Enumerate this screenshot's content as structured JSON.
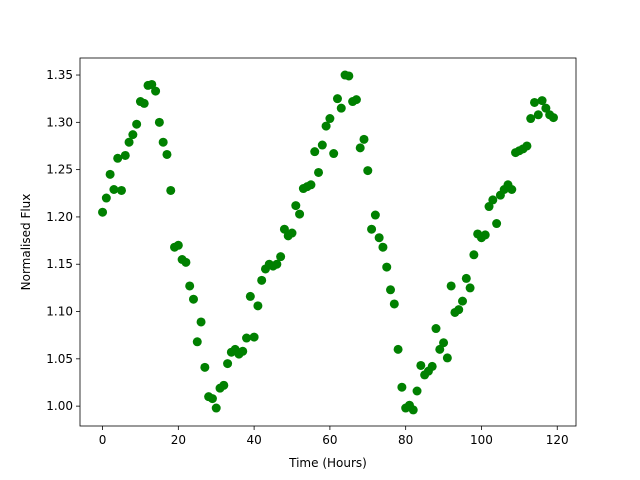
{
  "chart_data": {
    "type": "scatter",
    "xlabel": "Time (Hours)",
    "ylabel": "Normalised Flux",
    "color": "#008000",
    "x": [
      0,
      1,
      2,
      3,
      4,
      5,
      6,
      7,
      8,
      9,
      10,
      11,
      12,
      13,
      14,
      15,
      16,
      17,
      18,
      19,
      20,
      21,
      22,
      23,
      24,
      25,
      26,
      27,
      28,
      29,
      30,
      31,
      32,
      33,
      34,
      35,
      36,
      37,
      38,
      39,
      40,
      41,
      42,
      43,
      44,
      45,
      46,
      47,
      48,
      49,
      50,
      51,
      52,
      53,
      54,
      55,
      56,
      57,
      58,
      59,
      60,
      61,
      62,
      63,
      64,
      65,
      66,
      67,
      68,
      69,
      70,
      71,
      72,
      73,
      74,
      75,
      76,
      77,
      78,
      79,
      80,
      81,
      82,
      83,
      84,
      85,
      86,
      87,
      88,
      89,
      90,
      91,
      92,
      93,
      94,
      95,
      96,
      97,
      98,
      99,
      100,
      101,
      102,
      103,
      104,
      105,
      106,
      107,
      108,
      109,
      110,
      111,
      112,
      113,
      114,
      115,
      116,
      117,
      118,
      119
    ],
    "values": [
      1.205,
      1.22,
      1.245,
      1.229,
      1.262,
      1.228,
      1.265,
      1.279,
      1.287,
      1.298,
      1.322,
      1.32,
      1.339,
      1.34,
      1.333,
      1.3,
      1.279,
      1.266,
      1.228,
      1.168,
      1.17,
      1.155,
      1.152,
      1.127,
      1.113,
      1.068,
      1.089,
      1.041,
      1.01,
      1.008,
      0.998,
      1.019,
      1.022,
      1.045,
      1.057,
      1.06,
      1.055,
      1.058,
      1.072,
      1.116,
      1.073,
      1.106,
      1.133,
      1.145,
      1.15,
      1.148,
      1.15,
      1.158,
      1.187,
      1.18,
      1.183,
      1.212,
      1.203,
      1.23,
      1.232,
      1.234,
      1.269,
      1.247,
      1.276,
      1.296,
      1.304,
      1.267,
      1.325,
      1.315,
      1.35,
      1.349,
      1.322,
      1.324,
      1.273,
      1.282,
      1.249,
      1.187,
      1.202,
      1.178,
      1.168,
      1.147,
      1.123,
      1.108,
      1.06,
      1.02,
      0.998,
      1.001,
      0.996,
      1.016,
      1.043,
      1.033,
      1.037,
      1.042,
      1.082,
      1.06,
      1.067,
      1.051,
      1.127,
      1.099,
      1.102,
      1.111,
      1.135,
      1.125,
      1.16,
      1.182,
      1.178,
      1.181,
      1.211,
      1.218,
      1.193,
      1.223,
      1.229,
      1.234,
      1.229,
      1.268,
      1.27,
      1.272,
      1.275,
      1.304,
      1.321,
      1.308,
      1.323,
      1.315,
      1.308,
      1.305
    ],
    "xlim": [
      -5.95,
      124.95
    ],
    "ylim": [
      0.979,
      1.368
    ],
    "xticks": [
      0,
      20,
      40,
      60,
      80,
      100,
      120
    ],
    "yticks": [
      {
        "value": 1.0,
        "label": "1.00"
      },
      {
        "value": 1.05,
        "label": "1.05"
      },
      {
        "value": 1.1,
        "label": "1.10"
      },
      {
        "value": 1.15,
        "label": "1.15"
      },
      {
        "value": 1.2,
        "label": "1.20"
      },
      {
        "value": 1.25,
        "label": "1.25"
      },
      {
        "value": 1.3,
        "label": "1.30"
      },
      {
        "value": 1.35,
        "label": "1.35"
      }
    ]
  }
}
